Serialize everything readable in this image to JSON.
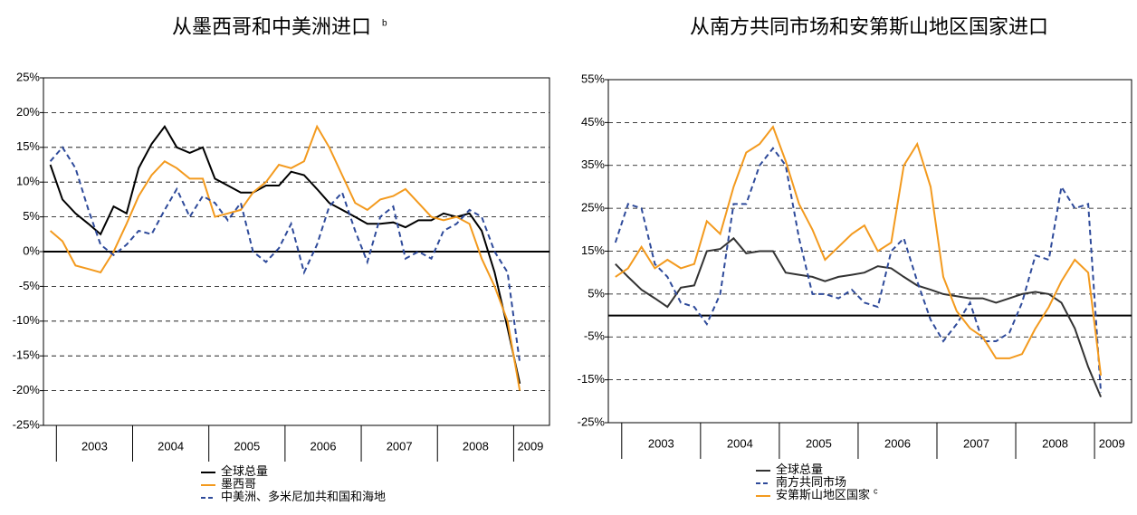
{
  "chart_data": [
    {
      "type": "line",
      "title": "从墨西哥和中美洲进口",
      "title_note": "b",
      "x": [
        2002.92,
        2003.08,
        2003.25,
        2003.42,
        2003.58,
        2003.75,
        2003.92,
        2004.08,
        2004.25,
        2004.42,
        2004.58,
        2004.75,
        2004.92,
        2005.08,
        2005.25,
        2005.42,
        2005.58,
        2005.75,
        2005.92,
        2006.08,
        2006.25,
        2006.42,
        2006.58,
        2006.75,
        2006.92,
        2007.08,
        2007.25,
        2007.42,
        2007.58,
        2007.75,
        2007.92,
        2008.08,
        2008.25,
        2008.42,
        2008.58,
        2008.75,
        2008.92,
        2009.08
      ],
      "xlim": [
        2002.83,
        2009.47
      ],
      "xticks": [
        {
          "value": 2003.5,
          "label": "2003"
        },
        {
          "value": 2004.5,
          "label": "2004"
        },
        {
          "value": 2005.5,
          "label": "2005"
        },
        {
          "value": 2006.5,
          "label": "2006"
        },
        {
          "value": 2007.5,
          "label": "2007"
        },
        {
          "value": 2008.5,
          "label": "2008"
        },
        {
          "value": 2009.22,
          "label": "2009"
        }
      ],
      "ylim": [
        -25,
        25
      ],
      "yticks": [
        {
          "value": -25,
          "label": "-25%"
        },
        {
          "value": -20,
          "label": "-20%"
        },
        {
          "value": -15,
          "label": "-15%"
        },
        {
          "value": -10,
          "label": "-10%"
        },
        {
          "value": -5,
          "label": "-5%"
        },
        {
          "value": 0,
          "label": "0%"
        },
        {
          "value": 5,
          "label": "5%"
        },
        {
          "value": 10,
          "label": "10%"
        },
        {
          "value": 15,
          "label": "15%"
        },
        {
          "value": 20,
          "label": "20%"
        },
        {
          "value": 25,
          "label": "25%"
        }
      ],
      "grid": true,
      "series": [
        {
          "name": "全球总量",
          "color": "#000000",
          "dash": false,
          "values": [
            12.5,
            7.5,
            5.5,
            4,
            2.5,
            6.5,
            5.5,
            12,
            15.5,
            18,
            15,
            14.2,
            15,
            10.5,
            9.5,
            8.5,
            8.5,
            9.5,
            9.5,
            11.5,
            11,
            9,
            7,
            6,
            5,
            4,
            4,
            4.2,
            3.5,
            4.5,
            4.5,
            5.5,
            5,
            5.5,
            3,
            -3,
            -11,
            -19
          ]
        },
        {
          "name": "墨西哥",
          "color": "#f39a1e",
          "dash": false,
          "values": [
            3,
            1.5,
            -2,
            -2.5,
            -3,
            0,
            4,
            8,
            11,
            13,
            12,
            10.5,
            10.5,
            5,
            5.5,
            6,
            8.5,
            10,
            12.5,
            12,
            13,
            18,
            15,
            11,
            7,
            6,
            7.5,
            8,
            9,
            7,
            5,
            4.5,
            5,
            4,
            -1,
            -5,
            -10,
            -20
          ]
        },
        {
          "name": "中美洲、多米尼加共和国和海地",
          "color": "#2e4a9a",
          "dash": true,
          "values": [
            13,
            15,
            12,
            6,
            1,
            -0.5,
            1,
            3,
            2.5,
            6,
            9,
            5,
            8,
            7,
            4.5,
            7,
            0,
            -1.5,
            0.5,
            4,
            -3,
            1,
            6.5,
            8.5,
            3,
            -1.5,
            5,
            6.5,
            -1,
            0,
            -1,
            3,
            4,
            6,
            5,
            0,
            -3,
            -16
          ]
        }
      ]
    },
    {
      "type": "line",
      "title": "从南方共同市场和安第斯山地区国家进口",
      "x": [
        2002.92,
        2003.08,
        2003.25,
        2003.42,
        2003.58,
        2003.75,
        2003.92,
        2004.08,
        2004.25,
        2004.42,
        2004.58,
        2004.75,
        2004.92,
        2005.08,
        2005.25,
        2005.42,
        2005.58,
        2005.75,
        2005.92,
        2006.08,
        2006.25,
        2006.42,
        2006.58,
        2006.75,
        2006.92,
        2007.08,
        2007.25,
        2007.42,
        2007.58,
        2007.75,
        2007.92,
        2008.08,
        2008.25,
        2008.42,
        2008.58,
        2008.75,
        2008.92,
        2009.08
      ],
      "xlim": [
        2002.83,
        2009.47
      ],
      "xticks": [
        {
          "value": 2003.5,
          "label": "2003"
        },
        {
          "value": 2004.5,
          "label": "2004"
        },
        {
          "value": 2005.5,
          "label": "2005"
        },
        {
          "value": 2006.5,
          "label": "2006"
        },
        {
          "value": 2007.5,
          "label": "2007"
        },
        {
          "value": 2008.5,
          "label": "2008"
        },
        {
          "value": 2009.22,
          "label": "2009"
        }
      ],
      "ylim": [
        -25,
        55
      ],
      "yticks": [
        {
          "value": -25,
          "label": "-25%"
        },
        {
          "value": -15,
          "label": "-15%"
        },
        {
          "value": -5,
          "label": "-5%"
        },
        {
          "value": 5,
          "label": "5%"
        },
        {
          "value": 15,
          "label": "15%"
        },
        {
          "value": 25,
          "label": "25%"
        },
        {
          "value": 35,
          "label": "35%"
        },
        {
          "value": 45,
          "label": "45%"
        },
        {
          "value": 55,
          "label": "55%"
        }
      ],
      "grid": true,
      "series": [
        {
          "name": "全球总量",
          "color": "#333333",
          "dash": false,
          "values": [
            12,
            9,
            6,
            4,
            2,
            6.5,
            7,
            15,
            15.5,
            18,
            14.5,
            15,
            15,
            10,
            9.5,
            9,
            8,
            9,
            9.5,
            10,
            11.5,
            11,
            9,
            7,
            6,
            5,
            4.5,
            4,
            4,
            3,
            4,
            5,
            5.5,
            5,
            3,
            -3,
            -12,
            -19
          ]
        },
        {
          "name": "南方共同市场",
          "color": "#2e4a9a",
          "dash": true,
          "values": [
            17,
            26,
            25,
            12,
            9,
            3,
            2,
            -2,
            5,
            26,
            26,
            35,
            39,
            35,
            18,
            5,
            5,
            4,
            6,
            3,
            2,
            15,
            18,
            8,
            -1,
            -6,
            -2,
            3,
            -6,
            -6,
            -4,
            3,
            14,
            13,
            30,
            25,
            26,
            -18
          ]
        },
        {
          "name": "安第斯山地区国家",
          "note": "c",
          "color": "#f39a1e",
          "dash": false,
          "values": [
            9,
            11,
            16,
            11,
            13,
            11,
            12,
            22,
            19,
            30,
            38,
            40,
            44,
            36,
            26,
            20,
            13,
            16,
            19,
            21,
            15,
            17,
            35,
            40,
            30,
            9,
            1,
            -3,
            -5,
            -10,
            -10,
            -9,
            -3,
            2,
            8,
            13,
            10,
            -14
          ]
        }
      ]
    }
  ]
}
